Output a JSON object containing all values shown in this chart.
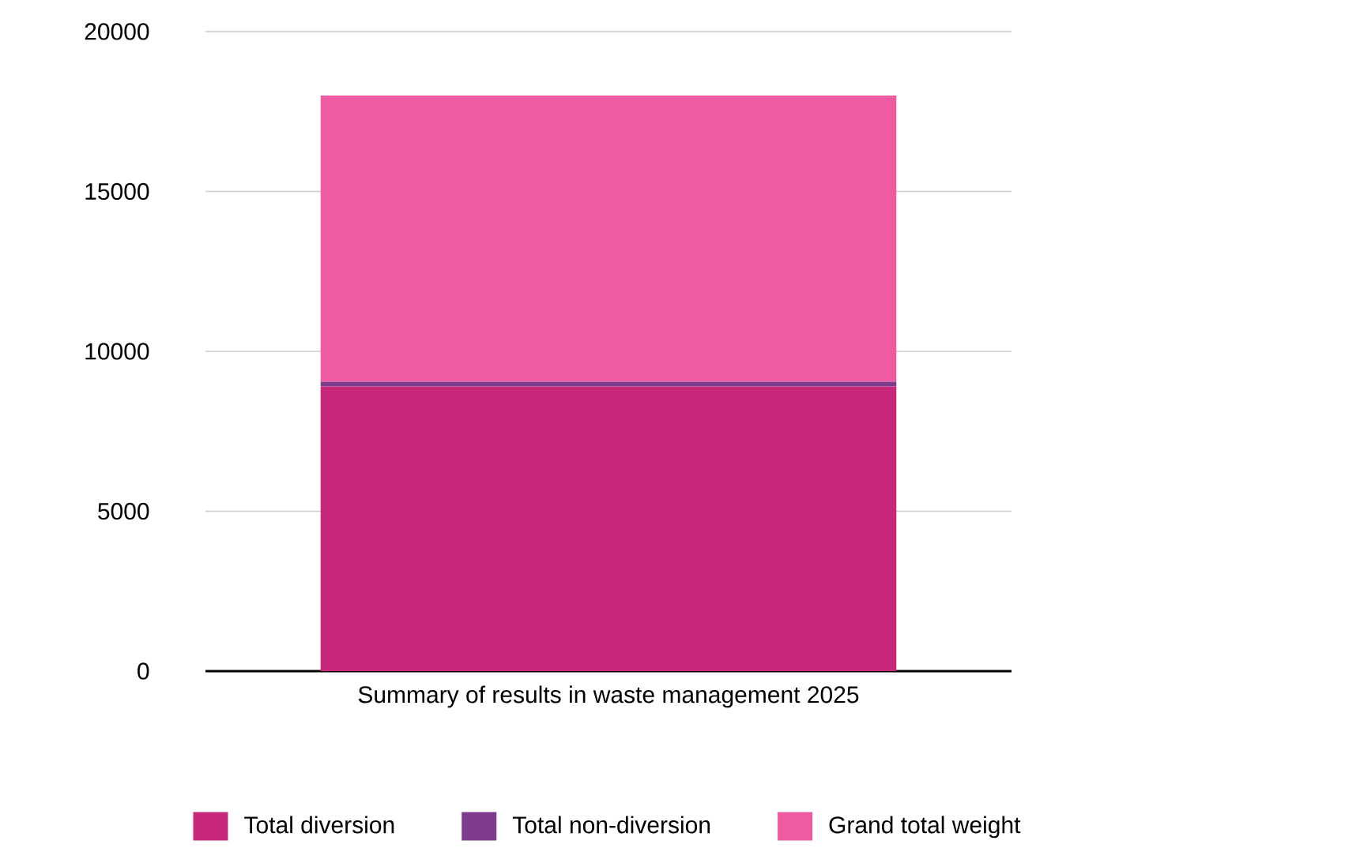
{
  "chart_data": {
    "type": "bar",
    "stacked": true,
    "categories": [
      "Summary of results in waste management 2025"
    ],
    "series": [
      {
        "name": "Total diversion",
        "color": "#c9287a",
        "values": [
          8900
        ]
      },
      {
        "name": "Total non-diversion",
        "color": "#7e3b8c",
        "values": [
          150
        ]
      },
      {
        "name": "Grand total weight",
        "color": "#ef5ba1",
        "values": [
          8950
        ]
      }
    ],
    "ylim": [
      0,
      20000
    ],
    "yticks": [
      0,
      5000,
      10000,
      15000,
      20000
    ],
    "grid": "y",
    "legend": "bottom"
  }
}
